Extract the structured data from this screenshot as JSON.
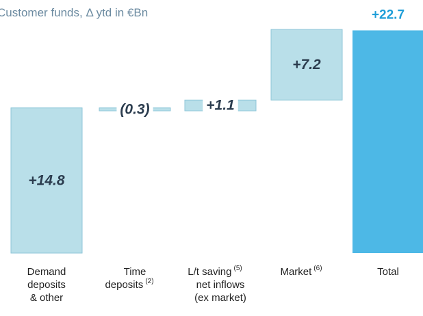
{
  "chart_data": {
    "type": "waterfall",
    "title": "Customer funds, Δ ytd in €Bn",
    "categories": [
      [
        "Demand",
        "deposits",
        "& other"
      ],
      [
        "Time",
        "deposits"
      ],
      [
        "L/t saving",
        "net inflows",
        "(ex market)"
      ],
      [
        "Market"
      ],
      [
        "Total"
      ]
    ],
    "category_notes": [
      [
        null,
        null,
        null
      ],
      [
        null,
        "(2)"
      ],
      [
        "(5)",
        null,
        null
      ],
      [
        "(6)"
      ],
      [
        null
      ]
    ],
    "measure": [
      "relative",
      "relative",
      "relative",
      "relative",
      "total"
    ],
    "values": [
      14.8,
      -0.3,
      1.1,
      7.2,
      22.7
    ],
    "value_labels": [
      "+14.8",
      "(0.3)",
      "+1.1",
      "+7.2",
      "+22.7"
    ],
    "color": "#b9dfe9",
    "total_color": "#4db8e6"
  }
}
